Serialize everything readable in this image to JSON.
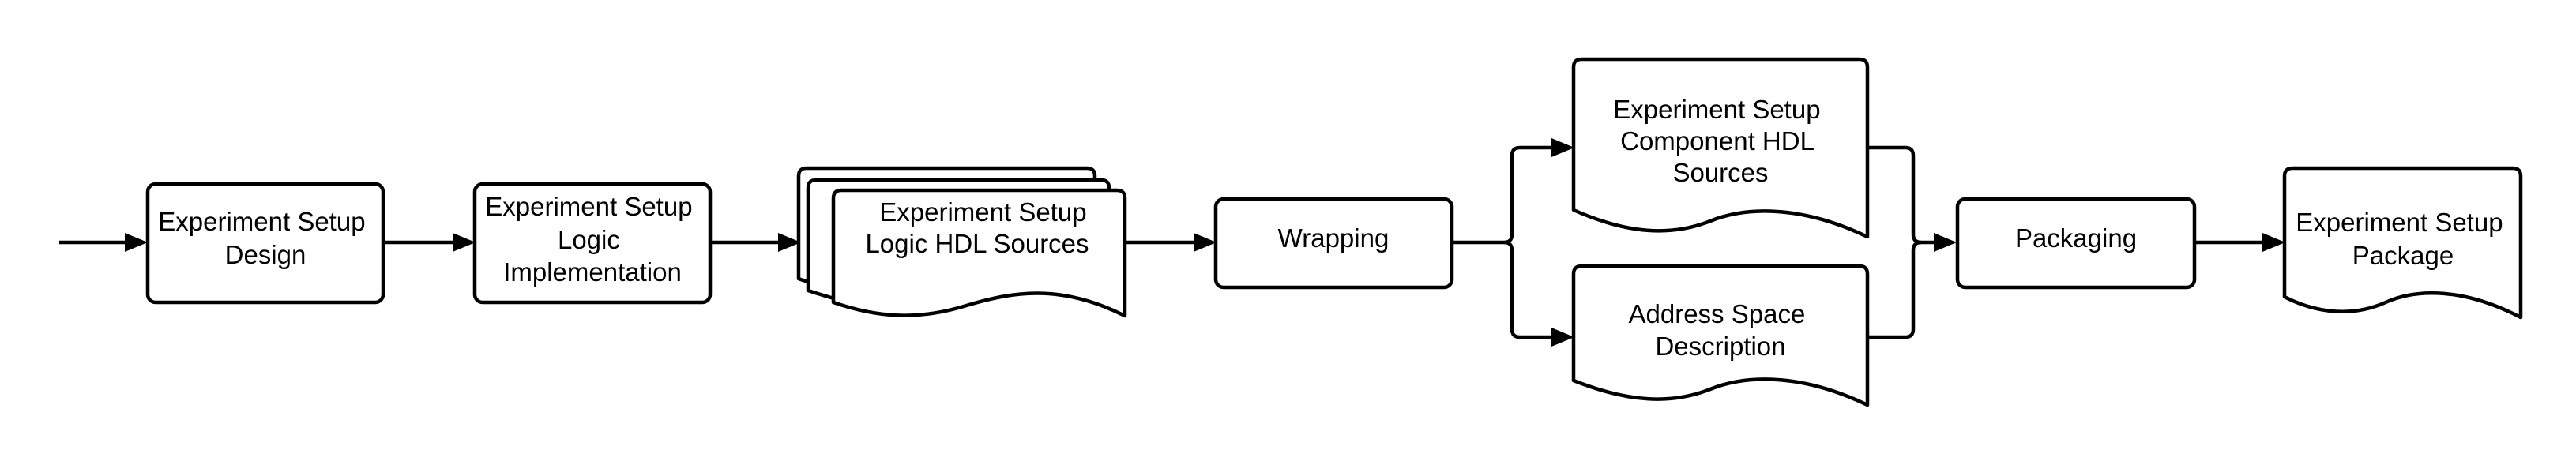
{
  "nodes": {
    "design": [
      "Experiment Setup",
      "Design"
    ],
    "logic_impl": [
      "Experiment Setup",
      "Logic",
      "Implementation"
    ],
    "logic_hdl": [
      "Experiment Setup",
      "Logic HDL Sources"
    ],
    "wrapping": [
      "Wrapping"
    ],
    "component_hdl": [
      "Experiment Setup",
      "Component HDL",
      "Sources"
    ],
    "address_space": [
      "Address Space",
      "Description"
    ],
    "packaging": [
      "Packaging"
    ],
    "package": [
      "Experiment Setup",
      "Package"
    ]
  },
  "edges": [
    {
      "from": "entry",
      "to": "design"
    },
    {
      "from": "design",
      "to": "logic_impl"
    },
    {
      "from": "logic_impl",
      "to": "logic_hdl"
    },
    {
      "from": "logic_hdl",
      "to": "wrapping"
    },
    {
      "from": "wrapping",
      "to": "component_hdl"
    },
    {
      "from": "wrapping",
      "to": "address_space"
    },
    {
      "from": "component_hdl",
      "to": "packaging"
    },
    {
      "from": "address_space",
      "to": "packaging"
    },
    {
      "from": "packaging",
      "to": "package"
    }
  ]
}
